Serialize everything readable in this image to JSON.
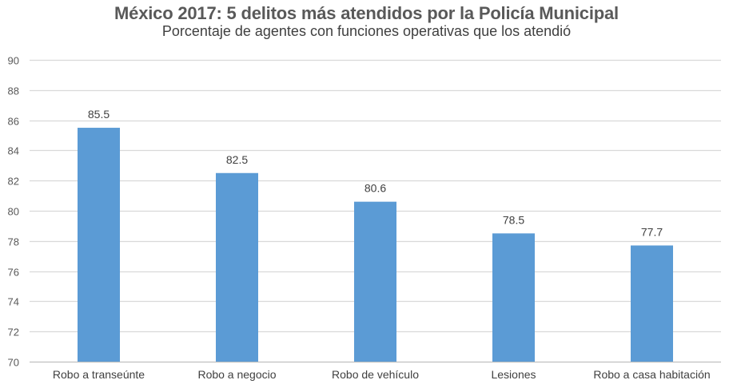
{
  "chart_data": {
    "type": "bar",
    "title": "México 2017: 5 delitos más atendidos por la Policía Municipal",
    "subtitle": "Porcentaje de agentes con funciones operativas que los atendió",
    "xlabel": "",
    "ylabel": "",
    "categories": [
      "Robo a transeúnte",
      "Robo a negocio",
      "Robo de vehículo",
      "Lesiones",
      "Robo a casa habitación"
    ],
    "values": [
      85.5,
      82.5,
      80.6,
      78.5,
      77.7
    ],
    "data_labels": [
      "85.5",
      "82.5",
      "80.6",
      "78.5",
      "77.7"
    ],
    "ylim": [
      70,
      90
    ],
    "yticks": [
      70,
      72,
      74,
      76,
      78,
      80,
      82,
      84,
      86,
      88,
      90
    ],
    "grid": true,
    "legend": "none",
    "colors": {
      "bar": "#5b9bd5",
      "grid": "#d9d9d9",
      "axis": "#bfbfbf"
    }
  }
}
